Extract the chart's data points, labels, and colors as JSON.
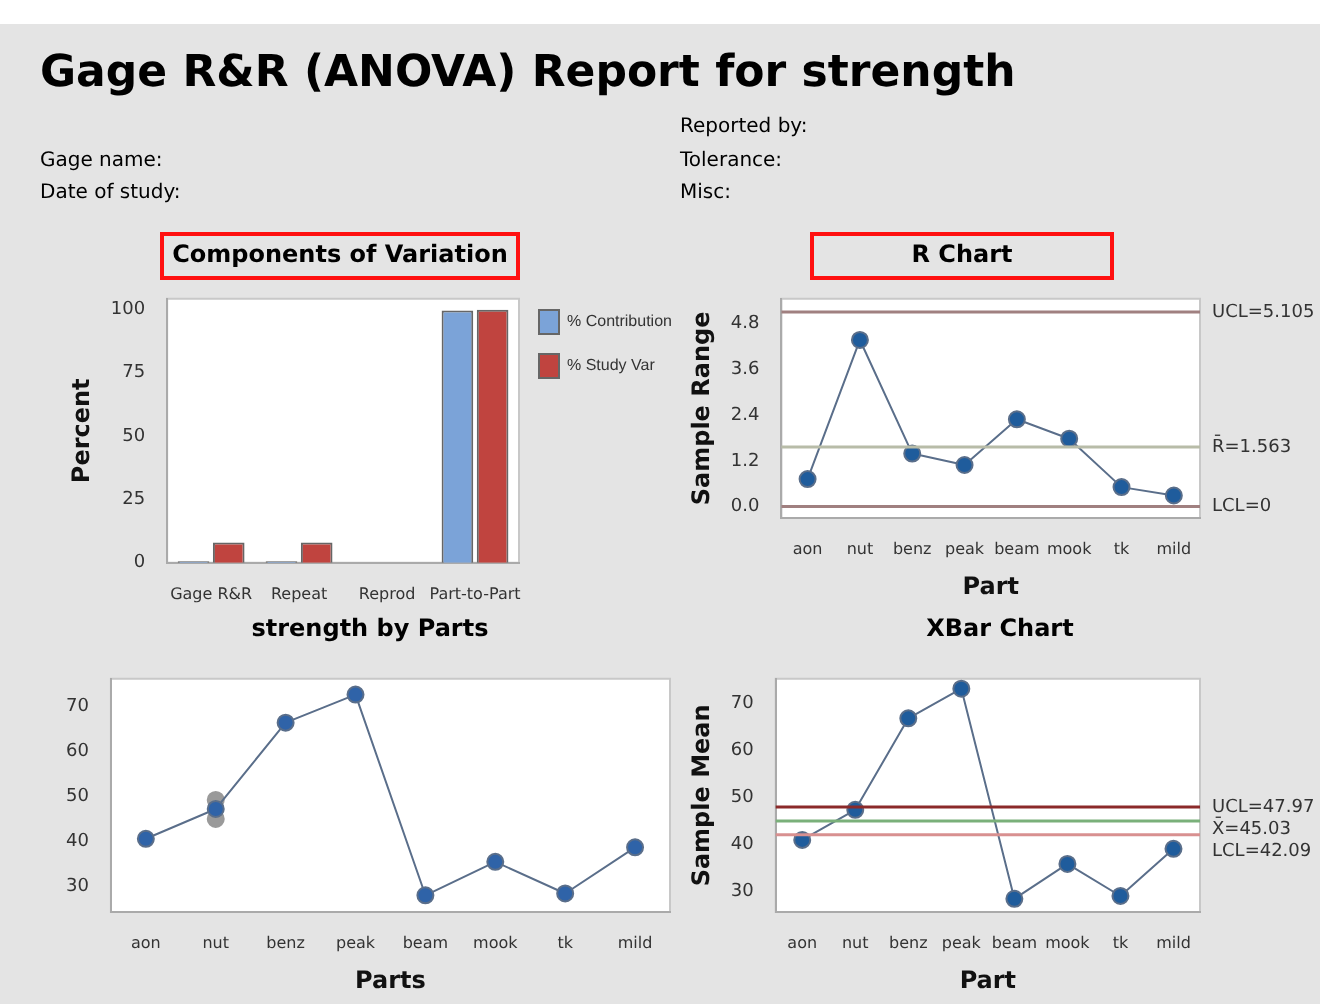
{
  "chart_data": [
    {
      "type": "other",
      "title": "Gage R&R (ANOVA) Report for strength",
      "annotations": [
        "Reported by:",
        "Gage name:",
        "Tolerance:",
        "Date of study:",
        "Misc:"
      ]
    },
    {
      "type": "bar",
      "title": "Components of Variation",
      "ylabel": "Percent",
      "categories": [
        "Gage R&R",
        "Repeat",
        "Reprod",
        "Part-to-Part"
      ],
      "series": [
        {
          "name": "% Contribution",
          "color": "#7ba3d8",
          "values": [
            0.6,
            0.6,
            0,
            99.4
          ]
        },
        {
          "name": "% Study Var",
          "color": "#c0443f",
          "values": [
            8,
            8,
            0,
            99.7
          ]
        }
      ],
      "ylim": [
        0,
        104
      ],
      "yticks": [
        0,
        25,
        50,
        75,
        100
      ],
      "grid": false,
      "legend": "top right"
    },
    {
      "type": "line",
      "title": "R Chart",
      "xlabel": "Part",
      "ylabel": "Sample Range",
      "categories": [
        "aon",
        "nut",
        "benz",
        "peak",
        "beam",
        "mook",
        "tk",
        "mild"
      ],
      "series": [
        {
          "color": "#1f5c9c",
          "values": [
            0.72,
            4.37,
            1.39,
            1.09,
            2.29,
            1.78,
            0.51,
            0.29
          ]
        }
      ],
      "ylim": [
        -0.3,
        5.45
      ],
      "yticks": [
        {
          "value": 0,
          "label": "0.0"
        },
        1.2,
        2.4,
        3.6,
        4.8
      ],
      "grid": false,
      "legend": false,
      "marker": "circle",
      "ref_lines": [
        {
          "axis": "y",
          "value": 5.105,
          "label": "UCL=5.105",
          "color": "#a08080"
        },
        {
          "axis": "y",
          "value": 1.563,
          "label": "R̄=1.563",
          "color": "#b8bca8"
        },
        {
          "axis": "y",
          "value": 0,
          "label": "LCL=0",
          "color": "#a08080"
        }
      ]
    },
    {
      "type": "line",
      "title": "strength by Parts",
      "xlabel": "Parts",
      "categories": [
        "aon",
        "nut",
        "benz",
        "peak",
        "beam",
        "mook",
        "tk",
        "mild"
      ],
      "series": [
        {
          "color": "#2f63a8",
          "values": [
            40.6,
            47.2,
            66.3,
            72.5,
            28.1,
            35.5,
            28.5,
            38.7
          ]
        },
        {
          "type": "scatter",
          "color": "#9a9a9a",
          "x": [
            "nut",
            "nut"
          ],
          "values": [
            49.2,
            45.0
          ]
        }
      ],
      "ylim": [
        24.4,
        76
      ],
      "yticks": [
        30,
        40,
        50,
        60,
        70
      ],
      "grid": false,
      "legend": false,
      "marker": "circle"
    },
    {
      "type": "line",
      "title": "XBar Chart",
      "xlabel": "Part",
      "ylabel": "Sample Mean",
      "categories": [
        "aon",
        "nut",
        "benz",
        "peak",
        "beam",
        "mook",
        "tk",
        "mild"
      ],
      "series": [
        {
          "color": "#1f5c9c",
          "values": [
            41.0,
            47.4,
            66.8,
            73.1,
            28.5,
            35.9,
            29.1,
            39.1
          ]
        }
      ],
      "ylim": [
        25.7,
        75.2
      ],
      "yticks": [
        30,
        40,
        50,
        60,
        70
      ],
      "grid": false,
      "legend": false,
      "marker": "circle",
      "ref_lines": [
        {
          "axis": "y",
          "value": 47.97,
          "label": "UCL=47.97",
          "color": "#8b2a2a"
        },
        {
          "axis": "y",
          "value": 45.03,
          "label": "X̄=45.03",
          "color": "#7ab07a"
        },
        {
          "axis": "y",
          "value": 42.09,
          "label": "LCL=42.09",
          "color": "#d89090"
        }
      ]
    }
  ]
}
